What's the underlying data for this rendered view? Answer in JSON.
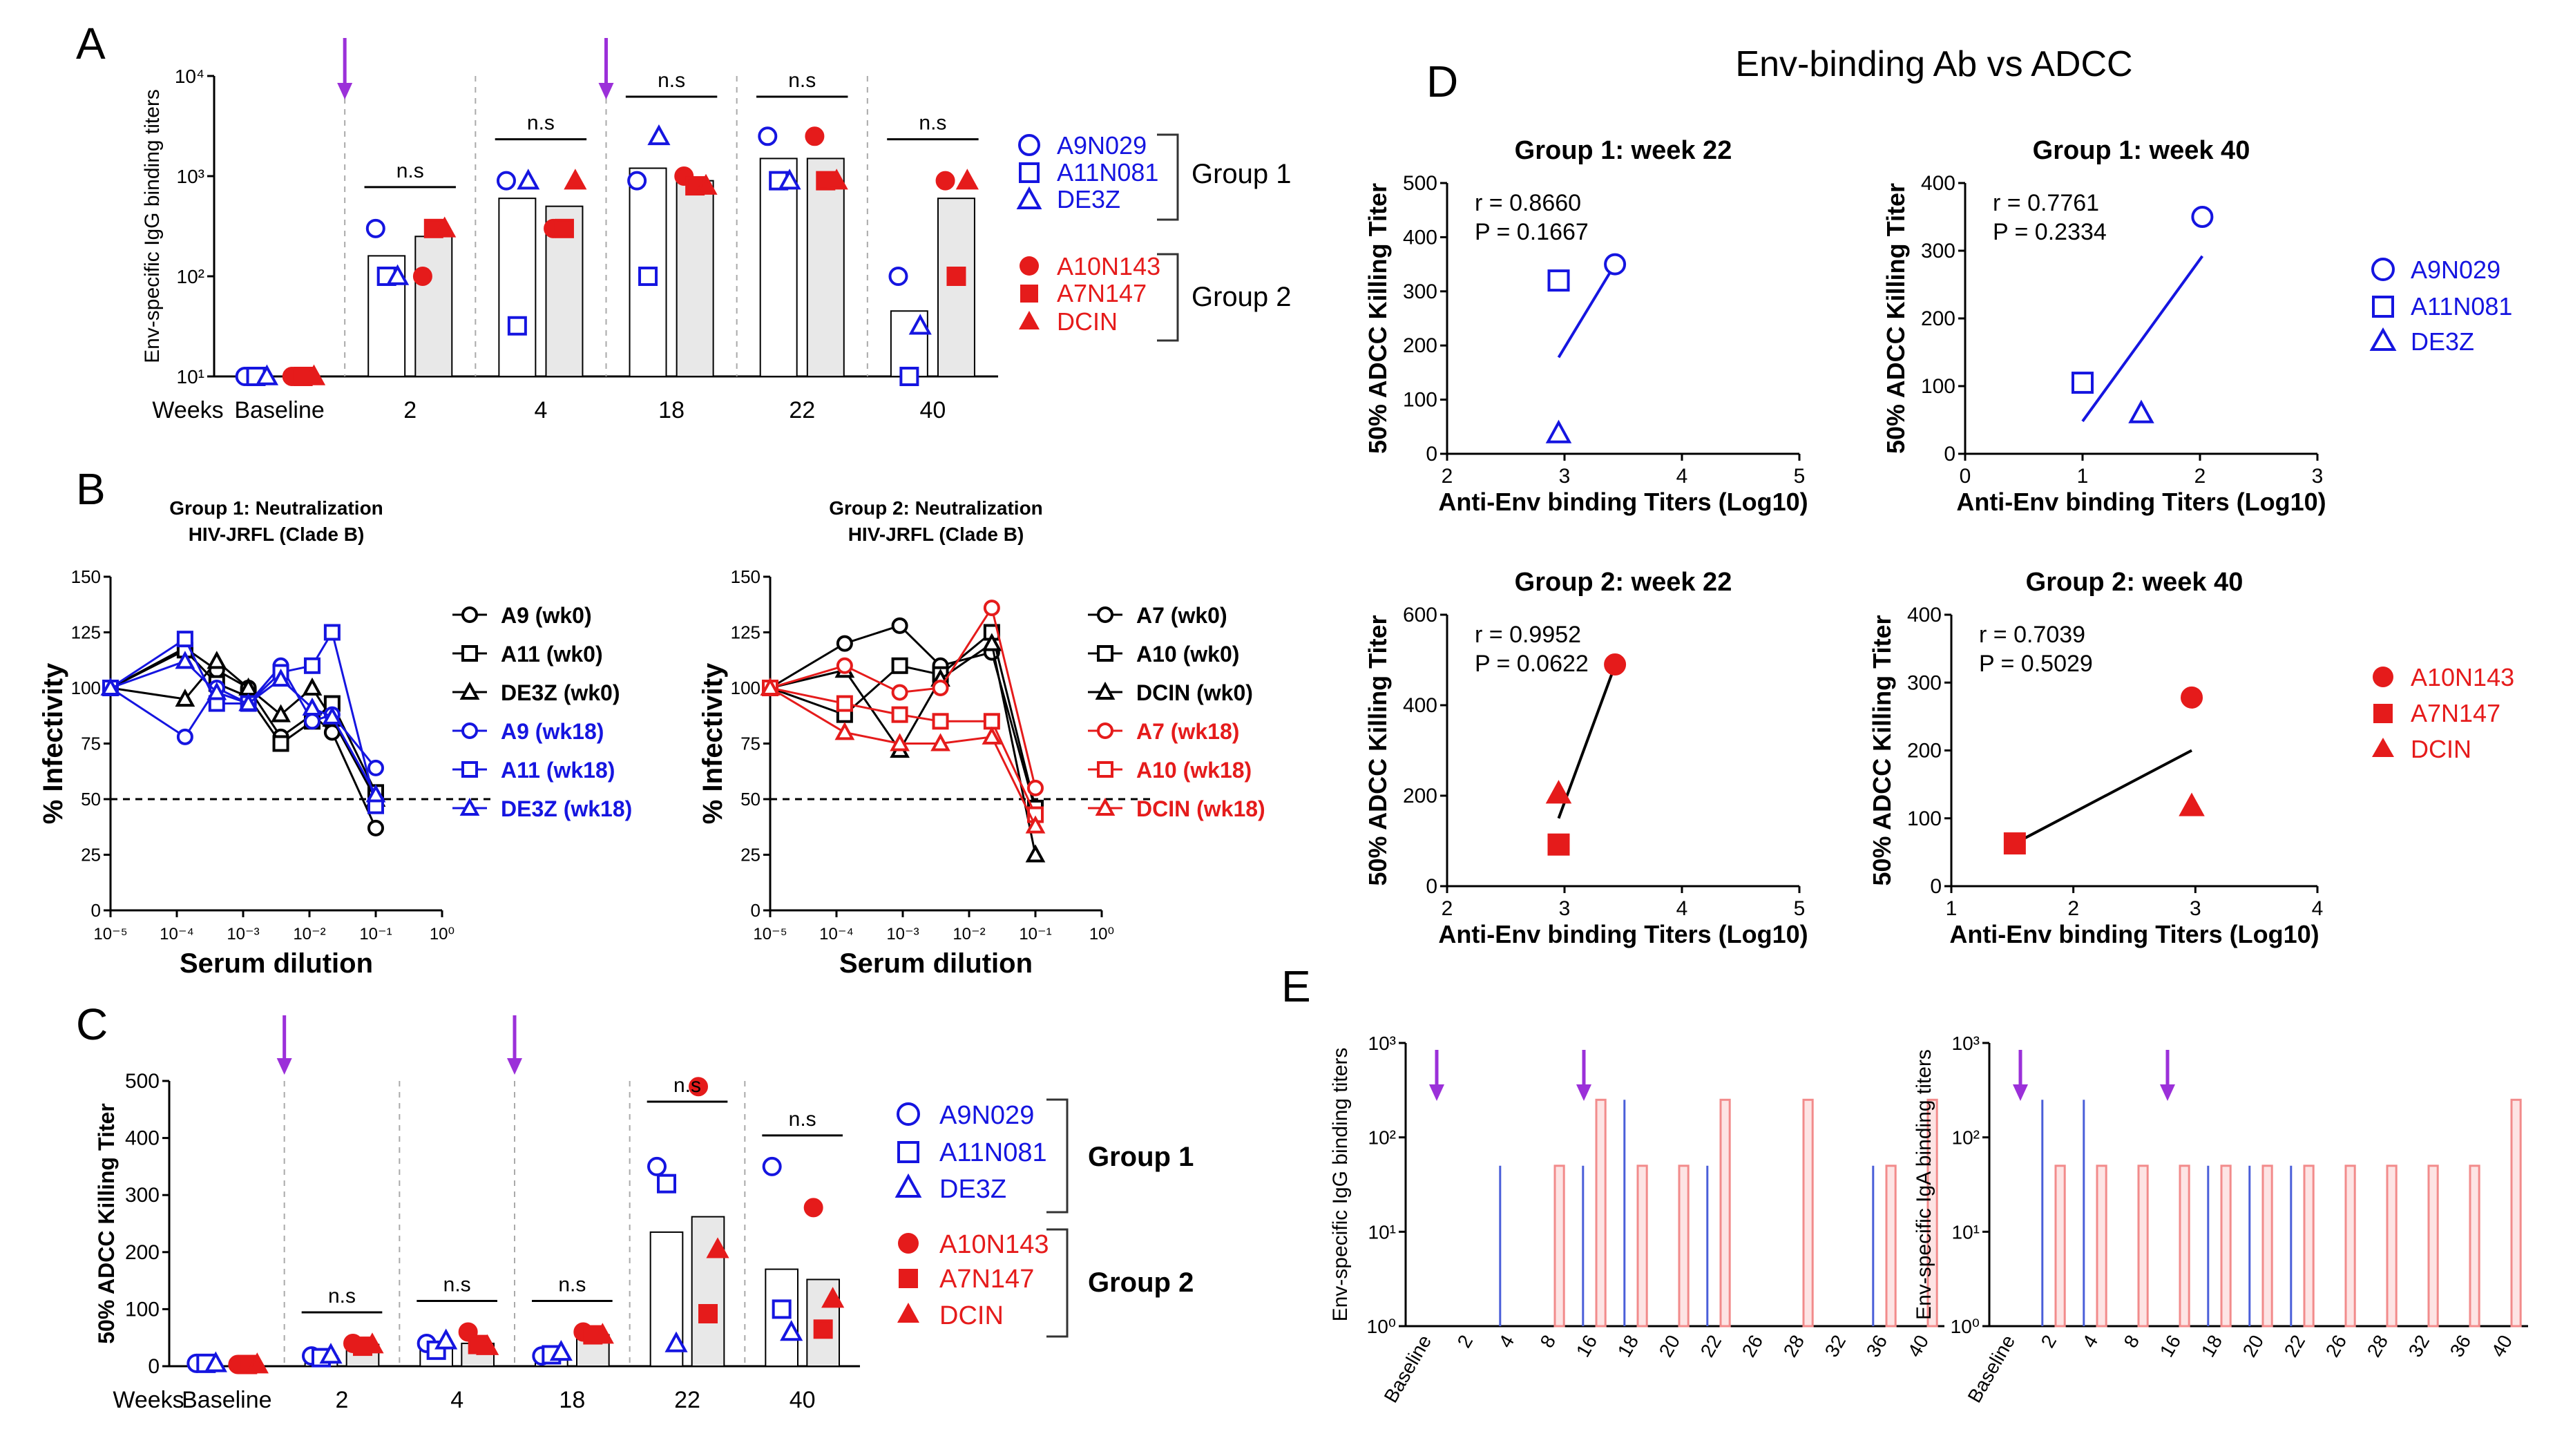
{
  "colors": {
    "blue": "#1515e0",
    "red": "#e51b1b",
    "purple": "#9b30d9",
    "black": "#000000",
    "gray": "#e8e8e8",
    "pink": "#f28b8b",
    "lightblue": "#4a5fd9"
  },
  "panel_labels": {
    "A": "A",
    "B": "B",
    "C": "C",
    "D": "D",
    "E": "E"
  },
  "common": {
    "weeks_label": "Weeks",
    "ns": "n.s",
    "group1": "Group 1",
    "group2": "Group 2",
    "g1_ids": [
      "A9N029",
      "A11N081",
      "DE3Z"
    ],
    "g2_ids": [
      "A10N143",
      "A7N147",
      "DCIN"
    ]
  },
  "chart_data": [
    {
      "id": "A",
      "type": "bar",
      "ylabel": "Env-specific IgG binding titers",
      "yscale": "log",
      "ylim": [
        10,
        10000
      ],
      "ytick_labels": [
        "10¹",
        "10²",
        "10³",
        "10⁴"
      ],
      "categories": [
        "Baseline",
        "2",
        "4",
        "18",
        "22",
        "40"
      ],
      "bars": {
        "group1": [
          10,
          160,
          600,
          1200,
          1500,
          45
        ],
        "group2": [
          10,
          250,
          500,
          900,
          1500,
          600
        ]
      },
      "points": {
        "group1": [
          [
            10,
            10,
            10
          ],
          [
            300,
            100,
            100
          ],
          [
            900,
            32,
            900
          ],
          [
            900,
            100,
            2500
          ],
          [
            2500,
            900,
            900
          ],
          [
            100,
            10,
            32
          ]
        ],
        "group2": [
          [
            10,
            10,
            10
          ],
          [
            100,
            300,
            300
          ],
          [
            300,
            300,
            900
          ],
          [
            1000,
            800,
            800
          ],
          [
            2500,
            900,
            900
          ],
          [
            900,
            100,
            900
          ]
        ]
      },
      "ns_labels": [
        "n.s",
        "n.s",
        "n.s",
        "n.s",
        "n.s"
      ],
      "arrow_after": [
        "Baseline",
        "4"
      ]
    },
    {
      "id": "B1",
      "type": "line",
      "title": [
        "Group 1: Neutralization",
        "HIV-JRFL (Clade B)"
      ],
      "ylabel": "% Infectivity",
      "xlabel": "Serum dilution",
      "ylim": [
        0,
        150
      ],
      "yticks": [
        "0",
        "25",
        "50",
        "75",
        "100",
        "125",
        "150"
      ],
      "xtick_labels": [
        "10⁻⁵",
        "10⁻⁴",
        "10⁻³",
        "10⁻²",
        "10⁻¹",
        "10⁰"
      ],
      "ref_line": 50,
      "x": [
        1e-05,
        0.000133,
        0.0004,
        0.0012,
        0.0037,
        0.011,
        0.022,
        0.1
      ],
      "series": [
        {
          "name": "A9 (wk0)",
          "color": "black",
          "marker": "circle",
          "values": [
            100,
            118,
            108,
            100,
            78,
            88,
            80,
            37
          ]
        },
        {
          "name": "A11 (wk0)",
          "color": "black",
          "marker": "square",
          "values": [
            100,
            117,
            102,
            96,
            75,
            85,
            93,
            53
          ]
        },
        {
          "name": "DE3Z (wk0)",
          "color": "black",
          "marker": "triangle",
          "values": [
            100,
            95,
            112,
            100,
            88,
            100,
            86,
            50
          ]
        },
        {
          "name": "A9 (wk18)",
          "color": "blue",
          "marker": "circle",
          "values": [
            100,
            78,
            100,
            93,
            110,
            85,
            88,
            64
          ]
        },
        {
          "name": "A11 (wk18)",
          "color": "blue",
          "marker": "square",
          "values": [
            100,
            122,
            93,
            93,
            107,
            110,
            125,
            47
          ]
        },
        {
          "name": "DE3Z (wk18)",
          "color": "blue",
          "marker": "triangle",
          "values": [
            100,
            112,
            98,
            93,
            104,
            91,
            87,
            52
          ]
        }
      ]
    },
    {
      "id": "B2",
      "type": "line",
      "title": [
        "Group 2: Neutralization",
        "HIV-JRFL (Clade B)"
      ],
      "ylabel": "% Infectivity",
      "xlabel": "Serum dilution",
      "ylim": [
        0,
        150
      ],
      "yticks": [
        "0",
        "25",
        "50",
        "75",
        "100",
        "125",
        "150"
      ],
      "xtick_labels": [
        "10⁻⁵",
        "10⁻⁴",
        "10⁻³",
        "10⁻²",
        "10⁻¹",
        "10⁰"
      ],
      "ref_line": 50,
      "x": [
        1e-05,
        0.000133,
        0.0009,
        0.0037,
        0.022,
        0.1
      ],
      "series": [
        {
          "name": "A7 (wk0)",
          "color": "black",
          "marker": "circle",
          "values": [
            100,
            120,
            128,
            110,
            116,
            45
          ]
        },
        {
          "name": "A10 (wk0)",
          "color": "black",
          "marker": "square",
          "values": [
            100,
            88,
            110,
            106,
            125,
            46
          ]
        },
        {
          "name": "DCIN (wk0)",
          "color": "black",
          "marker": "triangle",
          "values": [
            100,
            108,
            72,
            104,
            120,
            25
          ]
        },
        {
          "name": "A7 (wk18)",
          "color": "red",
          "marker": "circle",
          "values": [
            100,
            110,
            98,
            100,
            136,
            55
          ]
        },
        {
          "name": "A10 (wk18)",
          "color": "red",
          "marker": "square",
          "values": [
            100,
            93,
            88,
            85,
            85,
            43
          ]
        },
        {
          "name": "DCIN (wk18)",
          "color": "red",
          "marker": "triangle",
          "values": [
            100,
            80,
            75,
            75,
            78,
            38
          ]
        }
      ]
    },
    {
      "id": "C",
      "type": "bar",
      "ylabel": "50% ADCC Killing Titer",
      "ylim": [
        0,
        500
      ],
      "yticks": [
        "0",
        "100",
        "200",
        "300",
        "400",
        "500"
      ],
      "categories": [
        "Baseline",
        "2",
        "4",
        "18",
        "22",
        "40"
      ],
      "bars": {
        "group1": [
          0,
          18,
          38,
          22,
          235,
          170
        ],
        "group2": [
          0,
          38,
          40,
          55,
          262,
          152
        ]
      },
      "points": {
        "group1": [
          [
            5,
            5,
            5
          ],
          [
            18,
            15,
            20
          ],
          [
            40,
            28,
            45
          ],
          [
            18,
            20,
            25
          ],
          [
            350,
            320,
            40
          ],
          [
            350,
            100,
            60
          ]
        ],
        "group2": [
          [
            3,
            3,
            3
          ],
          [
            40,
            35,
            38
          ],
          [
            60,
            38,
            35
          ],
          [
            60,
            55,
            55
          ],
          [
            490,
            92,
            205
          ],
          [
            278,
            65,
            118
          ]
        ]
      },
      "ns_labels": [
        "n.s",
        "n.s",
        "n.s",
        "n.s",
        "n.s"
      ],
      "arrow_after": [
        "Baseline",
        "4"
      ]
    },
    {
      "id": "D1",
      "type": "scatter",
      "title": "Group 1: week 22",
      "ylabel": "50% ADCC Killing Titer",
      "xlabel": "Anti-Env binding Titers (Log10)",
      "xlim": [
        2,
        5
      ],
      "ylim": [
        0,
        500
      ],
      "xticks": [
        "2",
        "3",
        "4",
        "5"
      ],
      "yticks": [
        "0",
        "100",
        "200",
        "300",
        "400",
        "500"
      ],
      "r": "r = 0.8660",
      "p": "P = 0.1667",
      "color": "blue",
      "points": [
        {
          "name": "A9N029",
          "x": 3.43,
          "y": 350,
          "marker": "circle"
        },
        {
          "name": "A11N081",
          "x": 2.95,
          "y": 320,
          "marker": "square"
        },
        {
          "name": "DE3Z",
          "x": 2.95,
          "y": 38,
          "marker": "triangle"
        }
      ],
      "fit": [
        [
          2.95,
          178
        ],
        [
          3.43,
          350
        ]
      ]
    },
    {
      "id": "D2",
      "type": "scatter",
      "title": "Group 1: week 40",
      "ylabel": "50% ADCC Killing Titer",
      "xlabel": "Anti-Env binding Titers (Log10)",
      "xlim": [
        0,
        3
      ],
      "ylim": [
        0,
        400
      ],
      "xticks": [
        "0",
        "1",
        "2",
        "3"
      ],
      "yticks": [
        "0",
        "100",
        "200",
        "300",
        "400"
      ],
      "r": "r = 0.7761",
      "p": "P = 0.2334",
      "color": "blue",
      "points": [
        {
          "name": "A9N029",
          "x": 2.02,
          "y": 350,
          "marker": "circle"
        },
        {
          "name": "A11N081",
          "x": 1.0,
          "y": 105,
          "marker": "square"
        },
        {
          "name": "DE3Z",
          "x": 1.5,
          "y": 60,
          "marker": "triangle"
        }
      ],
      "fit": [
        [
          1.0,
          48
        ],
        [
          2.02,
          292
        ]
      ]
    },
    {
      "id": "D3",
      "type": "scatter",
      "title": "Group 2: week 22",
      "ylabel": "50% ADCC Killing Titer",
      "xlabel": "Anti-Env binding Titers (Log10)",
      "xlim": [
        2,
        5
      ],
      "ylim": [
        0,
        600
      ],
      "xticks": [
        "2",
        "3",
        "4",
        "5"
      ],
      "yticks": [
        "0",
        "200",
        "400",
        "600"
      ],
      "r": "r = 0.9952",
      "p": "P = 0.0622",
      "color": "red",
      "points": [
        {
          "name": "A10N143",
          "x": 3.43,
          "y": 490,
          "marker": "circle"
        },
        {
          "name": "A7N147",
          "x": 2.95,
          "y": 92,
          "marker": "square"
        },
        {
          "name": "DCIN",
          "x": 2.95,
          "y": 205,
          "marker": "triangle"
        }
      ],
      "fit": [
        [
          2.95,
          150
        ],
        [
          3.43,
          488
        ]
      ]
    },
    {
      "id": "D4",
      "type": "scatter",
      "title": "Group 2: week 40",
      "ylabel": "50% ADCC Killing Titer",
      "xlabel": "Anti-Env binding Titers (Log10)",
      "xlim": [
        1,
        4
      ],
      "ylim": [
        0,
        400
      ],
      "xticks": [
        "1",
        "2",
        "3",
        "4"
      ],
      "yticks": [
        "0",
        "100",
        "200",
        "300",
        "400"
      ],
      "r": "r = 0.7039",
      "p": "P = 0.5029",
      "color": "red",
      "points": [
        {
          "name": "A10N143",
          "x": 2.97,
          "y": 278,
          "marker": "circle"
        },
        {
          "name": "A7N147",
          "x": 1.52,
          "y": 63,
          "marker": "square"
        },
        {
          "name": "DCIN",
          "x": 2.97,
          "y": 118,
          "marker": "triangle"
        }
      ],
      "fit": [
        [
          1.52,
          63
        ],
        [
          2.97,
          200
        ]
      ]
    },
    {
      "id": "E1",
      "type": "bar",
      "ylabel": "Env-specific IgG binding titers",
      "yscale": "log",
      "ylim": [
        1,
        1000
      ],
      "ytick_labels": [
        "10⁰",
        "10¹",
        "10²",
        "10³"
      ],
      "categories": [
        "Baseline",
        "2",
        "4",
        "8",
        "16",
        "18",
        "20",
        "22",
        "26",
        "28",
        "32",
        "36",
        "40"
      ],
      "blue": [
        0,
        0,
        50,
        0,
        50,
        250,
        0,
        50,
        0,
        0,
        0,
        50,
        0
      ],
      "red": [
        0,
        0,
        0,
        50,
        250,
        50,
        50,
        250,
        0,
        250,
        0,
        50,
        250
      ],
      "arrow_after": [
        "Baseline",
        "8"
      ]
    },
    {
      "id": "E2",
      "type": "bar",
      "ylabel": "Env-specific IgA binding titers",
      "yscale": "log",
      "ylim": [
        1,
        1000
      ],
      "ytick_labels": [
        "10⁰",
        "10¹",
        "10²",
        "10³"
      ],
      "categories": [
        "Baseline",
        "2",
        "4",
        "8",
        "16",
        "18",
        "20",
        "22",
        "26",
        "28",
        "32",
        "36",
        "40"
      ],
      "blue": [
        0,
        250,
        250,
        0,
        0,
        50,
        50,
        50,
        0,
        0,
        0,
        0,
        0
      ],
      "red": [
        0,
        50,
        50,
        50,
        50,
        50,
        50,
        50,
        50,
        50,
        50,
        50,
        250
      ],
      "arrow_after": [
        "Baseline",
        "8"
      ]
    }
  ],
  "D": {
    "title": "Env-binding Ab vs ADCC"
  }
}
